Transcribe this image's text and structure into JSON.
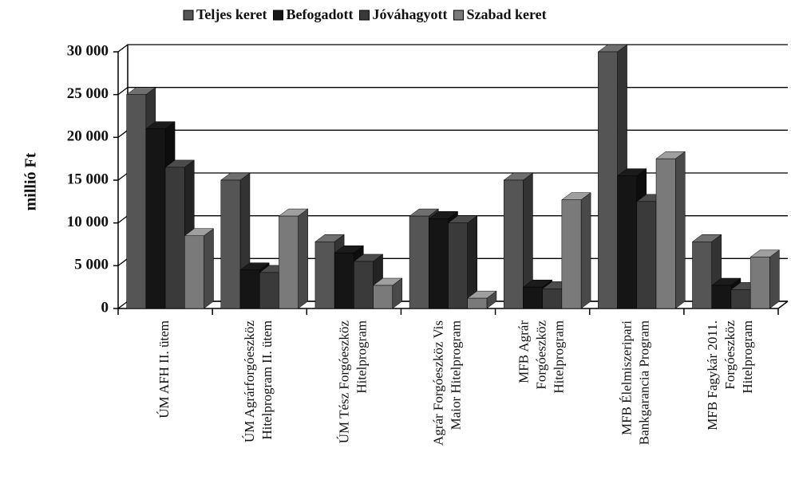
{
  "chart_data": {
    "type": "bar3d",
    "ylabel": "millió Ft",
    "categories": [
      [
        "ÚM AFH II. ütem"
      ],
      [
        "ÚM Agrárforgóeszköz",
        "Hitelprogram II. ütem"
      ],
      [
        "ÚM Tész Forgóeszköz",
        "Hitelprogram"
      ],
      [
        "Agrár Forgóeszköz Vis",
        "Maior Hitelprogram"
      ],
      [
        "MFB Agrár",
        "Forgóeszköz",
        "Hitelprogram"
      ],
      [
        "MFB Élelmiszeripari",
        "Bankgarancia Program"
      ],
      [
        "MFB Fagykár 2011.",
        "Forgóeszköz",
        "Hitelprogram"
      ]
    ],
    "series": [
      {
        "name": "Teljes keret",
        "color": "#555555",
        "values": [
          25000,
          15000,
          7800,
          10800,
          15000,
          30000,
          7800
        ]
      },
      {
        "name": "Befogadott",
        "color": "#151515",
        "values": [
          21000,
          4500,
          6500,
          10500,
          2500,
          15500,
          2700
        ]
      },
      {
        "name": "Jóváhagyott",
        "color": "#3a3a3a",
        "values": [
          16500,
          4200,
          5500,
          10000,
          2300,
          12500,
          2200
        ]
      },
      {
        "name": "Szabad keret",
        "color": "#7a7a7a",
        "values": [
          8500,
          10800,
          2700,
          1200,
          12700,
          17500,
          6000
        ]
      }
    ],
    "ylim": [
      0,
      30000
    ],
    "yticks": [
      0,
      {
        "value": 5000,
        "label": "5 000"
      },
      {
        "value": 10000,
        "label": "10 000"
      },
      {
        "value": 15000,
        "label": "15 000"
      },
      {
        "value": 20000,
        "label": "20 000"
      },
      {
        "value": 25000,
        "label": "25 000"
      },
      {
        "value": 30000,
        "label": "30 000"
      }
    ],
    "grid": true,
    "legend": "top"
  }
}
